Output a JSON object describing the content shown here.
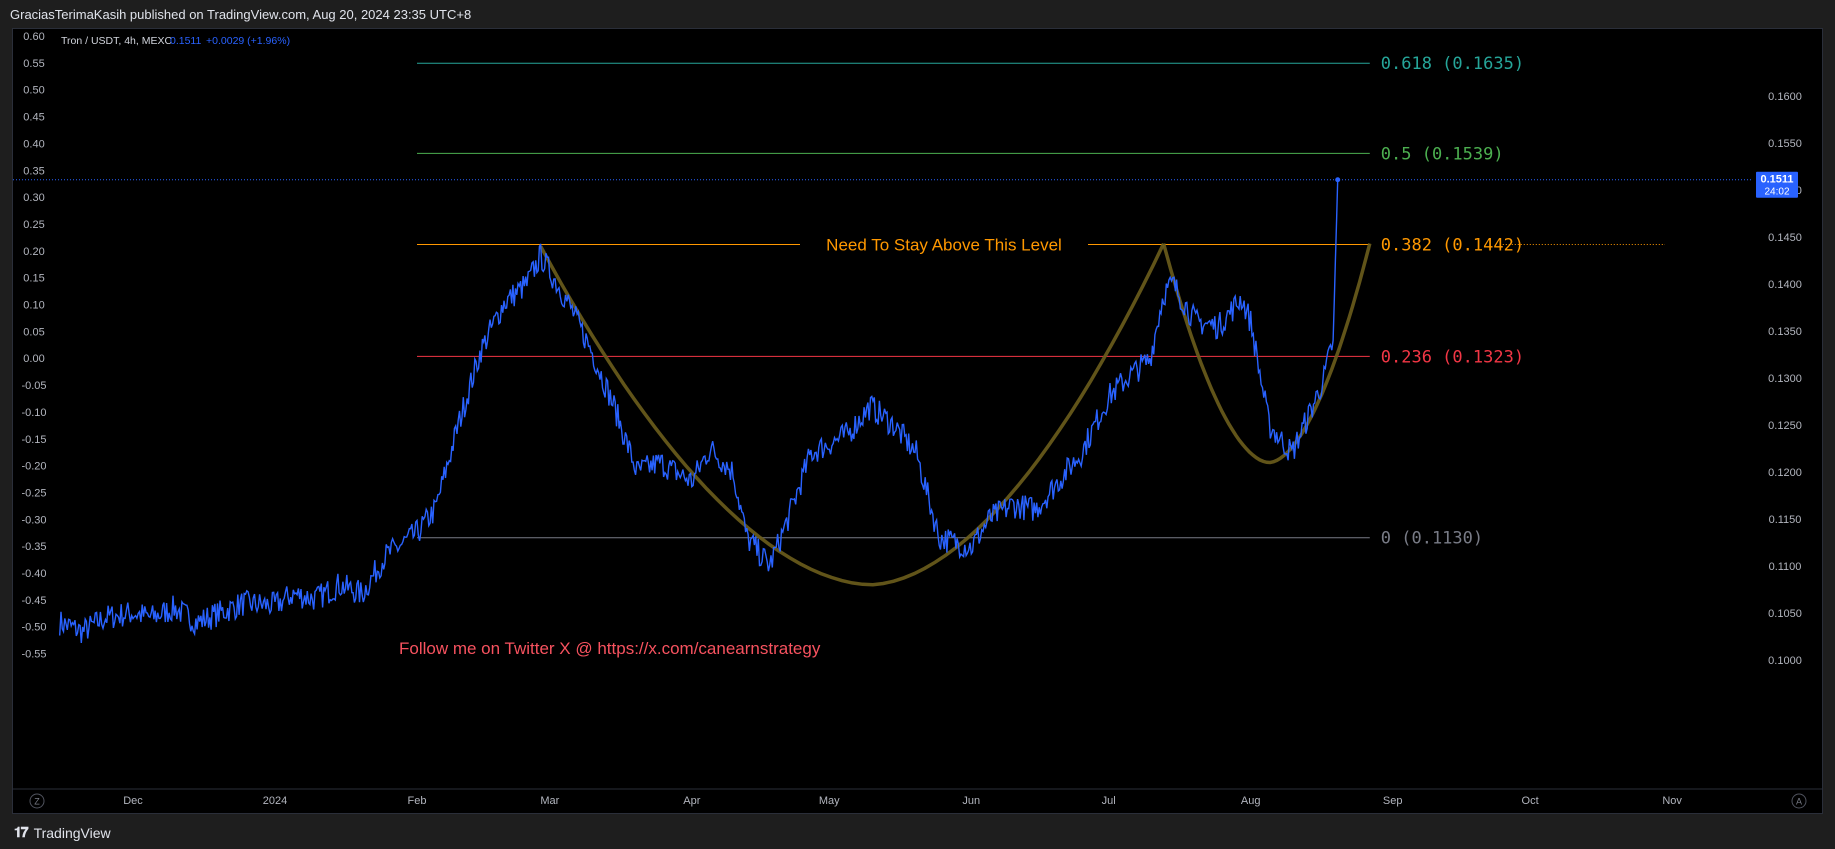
{
  "header": {
    "publish_text": "GraciasTerimaKasih published on TradingView.com, Aug 20, 2024 23:35 UTC+8"
  },
  "symbol": {
    "title": "Tron / USDT, 4h, MEXC",
    "price": "0.1511",
    "change": "+0.0029 (+1.96%)"
  },
  "footer": {
    "brand": "TradingView"
  },
  "colors": {
    "price_line": "#2962ff",
    "cup_curve": "#6b5d1c",
    "fib_0618": "#26a69a",
    "fib_05": "#4caf50",
    "fib_0382": "#ff9800",
    "fib_0236": "#f23645",
    "fib_0": "#787b86",
    "twitter_text": "#f7525f"
  },
  "chart_data": {
    "type": "line",
    "series": [],
    "x": [
      "2023-11-15",
      "2023-11-20",
      "2023-11-25",
      "2023-12-01",
      "2023-12-05",
      "2023-12-10",
      "2023-12-15",
      "2023-12-20",
      "2023-12-25",
      "2024-01-01",
      "2024-01-05",
      "2024-01-10",
      "2024-01-15",
      "2024-01-20",
      "2024-01-25",
      "2024-02-01",
      "2024-02-05",
      "2024-02-10",
      "2024-02-15",
      "2024-02-20",
      "2024-02-25",
      "2024-02-28",
      "2024-03-05",
      "2024-03-10",
      "2024-03-15",
      "2024-03-20",
      "2024-03-25",
      "2024-04-01",
      "2024-04-05",
      "2024-04-10",
      "2024-04-13",
      "2024-04-18",
      "2024-04-22",
      "2024-04-27",
      "2024-05-01",
      "2024-05-05",
      "2024-05-10",
      "2024-05-15",
      "2024-05-20",
      "2024-05-25",
      "2024-06-01",
      "2024-06-05",
      "2024-06-10",
      "2024-06-15",
      "2024-06-20",
      "2024-06-25",
      "2024-07-01",
      "2024-07-05",
      "2024-07-10",
      "2024-07-13",
      "2024-07-15",
      "2024-07-20",
      "2024-07-25",
      "2024-07-30",
      "2024-08-01",
      "2024-08-05",
      "2024-08-10",
      "2024-08-15",
      "2024-08-17",
      "2024-08-19",
      "2024-08-20"
    ],
    "y": [
      0.104,
      0.103,
      0.1045,
      0.105,
      0.1045,
      0.1055,
      0.104,
      0.105,
      0.106,
      0.1058,
      0.107,
      0.1065,
      0.108,
      0.107,
      0.111,
      0.1135,
      0.116,
      0.125,
      0.133,
      0.138,
      0.14,
      0.143,
      0.138,
      0.133,
      0.127,
      0.12,
      0.121,
      0.119,
      0.1225,
      0.12,
      0.113,
      0.11,
      0.115,
      0.122,
      0.123,
      0.124,
      0.127,
      0.125,
      0.122,
      0.113,
      0.112,
      0.115,
      0.1165,
      0.116,
      0.119,
      0.122,
      0.128,
      0.13,
      0.132,
      0.139,
      0.14,
      0.136,
      0.1355,
      0.1385,
      0.136,
      0.125,
      0.122,
      0.1275,
      0.13,
      0.134,
      0.1511
    ],
    "ylim": [
      0.0985,
      0.1665
    ],
    "right_axis_ticks": [
      "0.1600",
      "0.1550",
      "0.1500",
      "0.1450",
      "0.1400",
      "0.1350",
      "0.1300",
      "0.1250",
      "0.1200",
      "0.1150",
      "0.1100",
      "0.1050",
      "0.1000"
    ],
    "left_axis_ticks": [
      "0.60",
      "0.55",
      "0.50",
      "0.45",
      "0.40",
      "0.35",
      "0.30",
      "0.25",
      "0.20",
      "0.15",
      "0.10",
      "0.05",
      "0.00",
      "-0.05",
      "-0.10",
      "-0.15",
      "-0.20",
      "-0.25",
      "-0.30",
      "-0.35",
      "-0.40",
      "-0.45",
      "-0.50",
      "-0.55"
    ],
    "x_tick_labels": [
      "Dec",
      "2024",
      "Feb",
      "Mar",
      "Apr",
      "May",
      "Jun",
      "Jul",
      "Aug",
      "Sep",
      "Oct",
      "Nov"
    ],
    "x_tick_dates": [
      "2023-12-01",
      "2024-01-01",
      "2024-02-01",
      "2024-03-01",
      "2024-04-01",
      "2024-05-01",
      "2024-06-01",
      "2024-07-01",
      "2024-08-01",
      "2024-09-01",
      "2024-10-01",
      "2024-11-01"
    ],
    "fib_levels": [
      {
        "label": "0.618 (0.1635)",
        "value": 0.1635,
        "color": "#26a69a"
      },
      {
        "label": "0.5 (0.1539)",
        "value": 0.1539,
        "color": "#4caf50"
      },
      {
        "label": "0.382 (0.1442)",
        "value": 0.1442,
        "color": "#ff9800"
      },
      {
        "label": "0.236 (0.1323)",
        "value": 0.1323,
        "color": "#f23645"
      },
      {
        "label": "0 (0.1130)",
        "value": 0.113,
        "color": "#787b86"
      }
    ],
    "fib_start": "2024-02-01",
    "fib_end": "2024-08-27",
    "last_price": {
      "value": 0.1511,
      "label": "0.1511",
      "countdown": "24:02"
    },
    "annotations": [
      {
        "text": "Need To Stay Above This Level",
        "color": "#ff9800"
      },
      {
        "text": "Follow me on Twitter X @ https://x.com/canearnstrategy",
        "color": "#f7525f"
      }
    ],
    "cup_curve": {
      "start": "2024-02-28",
      "start_value": 0.144,
      "bottom": "2024-05-10",
      "bottom_value": 0.108,
      "end": "2024-07-13",
      "end_value": 0.1443
    },
    "handle_curve": {
      "start": "2024-07-13",
      "start_value": 0.1443,
      "bottom": "2024-08-05",
      "bottom_value": 0.121,
      "end": "2024-08-27",
      "end_value": 0.1443
    },
    "grid": false,
    "legend": "top-left"
  }
}
